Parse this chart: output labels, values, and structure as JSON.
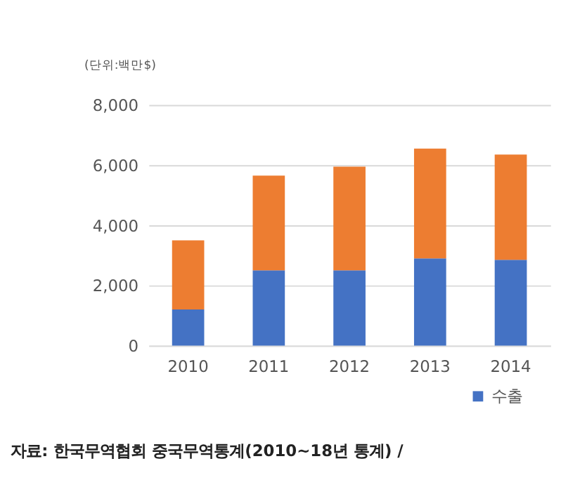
{
  "chart_data": {
    "type": "bar",
    "stacked": true,
    "ylabel": "(단위:백만$)",
    "categories": [
      "2010",
      "2011",
      "2012",
      "2013",
      "2014"
    ],
    "series": [
      {
        "name": "수출",
        "color": "#4472c4",
        "values": [
          1200,
          2500,
          2500,
          2900,
          2850
        ]
      },
      {
        "color": "#ed7d31",
        "values": [
          2300,
          3150,
          3450,
          3650,
          3500
        ]
      }
    ],
    "ylim": [
      0,
      8000
    ],
    "yticks": [
      0,
      {
        "value": 2000,
        "label": "2,000"
      },
      {
        "value": 4000,
        "label": "4,000"
      },
      {
        "value": 6000,
        "label": "6,000"
      },
      {
        "value": 8000,
        "label": "8,000"
      }
    ],
    "grid": "y",
    "legend": "bottom right",
    "annotations": [
      "자료: 한국무역협회 중국무역통계(2010~18년 통계) /"
    ]
  }
}
